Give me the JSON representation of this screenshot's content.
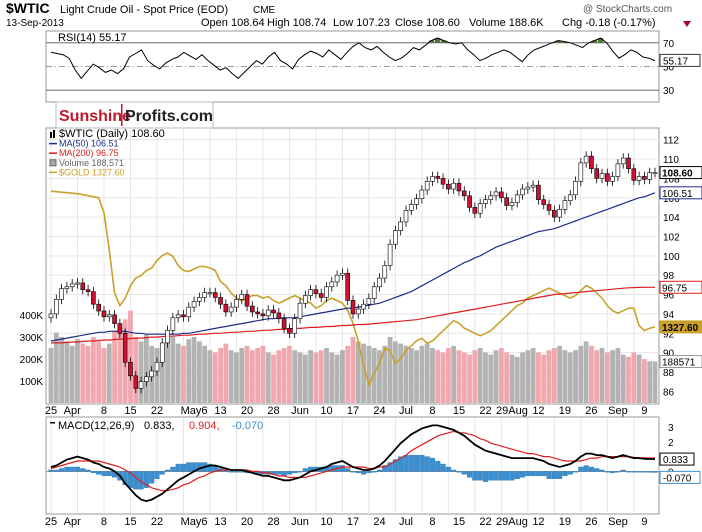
{
  "header": {
    "symbol": "$WTIC",
    "description": "Light Crude Oil - Spot Price (EOD)",
    "exchange": "CME",
    "date": "13-Sep-2013",
    "copyright": "@ StockCharts.com",
    "quote": {
      "open": "Open 108.64",
      "high": "High 108.74",
      "low": "Low 107.23",
      "close": "Close 108.60",
      "volume": "Volume 188.6K",
      "change": "Chg -0.18 (-0.17%)"
    }
  },
  "watermark": {
    "part1": "Sunshine",
    "part2": "Profits.com"
  },
  "colors": {
    "up": "#ffffff",
    "down": "#cc1133",
    "ma50": "#1e2c8c",
    "ma200": "#dd1f1f",
    "gold": "#c9a12a",
    "vol_up": "#b3b3b3",
    "vol_down": "#f0a8ae",
    "macd_line": "#000000",
    "signal_line": "#dd1f1f",
    "histogram": "#3a8fd0"
  },
  "chart_data": [
    {
      "type": "line",
      "name": "rsi-panel",
      "title": "RSI(14) 55.17",
      "ylim": [
        20,
        80
      ],
      "yticks": [
        "70",
        "50",
        "30"
      ],
      "last_label": "55.17",
      "levels": [
        70,
        30
      ],
      "midline": 50,
      "values": [
        62,
        61,
        60,
        57,
        47,
        40,
        46,
        52,
        49,
        45,
        47,
        44,
        48,
        58,
        61,
        64,
        55,
        51,
        48,
        53,
        56,
        58,
        62,
        59,
        56,
        60,
        55,
        51,
        47,
        49,
        44,
        40,
        45,
        50,
        55,
        52,
        58,
        62,
        55,
        52,
        48,
        56,
        60,
        63,
        61,
        58,
        64,
        60,
        56,
        62,
        67,
        70,
        66,
        64,
        67,
        62,
        58,
        55,
        57,
        61,
        66,
        64,
        68,
        72,
        74,
        72,
        70,
        69,
        70,
        64,
        60,
        55,
        57,
        60,
        62,
        64,
        62,
        58,
        54,
        60,
        64,
        66,
        68,
        70,
        72,
        71,
        70,
        68,
        66,
        70,
        72,
        74,
        70,
        63,
        57,
        60,
        64,
        62,
        58,
        57,
        55
      ]
    },
    {
      "type": "candlestick",
      "name": "price-panel",
      "legend": [
        "$WTIC (Daily) 108.60",
        "MA(50) 106.51",
        "MA(200) 96.75",
        "Volume 188,571",
        "$GOLD 1327.60"
      ],
      "ylim": [
        85,
        113
      ],
      "yticks": [
        "112",
        "110",
        "108",
        "106",
        "104",
        "102",
        "100",
        "98",
        "96",
        "94",
        "92",
        "90",
        "88",
        "86"
      ],
      "vol_ticks": [
        "400K",
        "300K",
        "200K",
        "100K"
      ],
      "vol_max": 500000,
      "right_labels": {
        "price": "108.60",
        "ma50": "106.51",
        "ma200": "96.75",
        "gold": "1327.60",
        "volume": "188571"
      },
      "x_labels": [
        "25",
        "Apr",
        "8",
        "15",
        "22",
        "May6",
        "13",
        "20",
        "28",
        "Jun",
        "10",
        "17",
        "24",
        "Jul",
        "8",
        "15",
        "22",
        "29Aug",
        "12",
        "19",
        "26",
        "Sep",
        "9"
      ],
      "x_label_index": [
        0,
        4,
        10,
        15,
        20,
        27,
        32,
        37,
        42,
        47,
        52,
        57,
        62,
        67,
        72,
        77,
        82,
        87,
        92,
        97,
        102,
        107,
        112
      ],
      "close": [
        94.0,
        95.5,
        96.6,
        96.8,
        97.1,
        97.2,
        96.5,
        96.3,
        95.0,
        94.3,
        93.7,
        93.9,
        93.0,
        92.0,
        89.0,
        87.6,
        86.3,
        87.0,
        87.5,
        88.1,
        89.0,
        91.0,
        92.3,
        93.6,
        93.9,
        93.7,
        94.7,
        95.3,
        95.7,
        96.2,
        96.2,
        95.7,
        95.0,
        94.2,
        94.7,
        95.5,
        96.0,
        94.8,
        94.2,
        94.0,
        93.8,
        94.4,
        94.1,
        93.5,
        92.5,
        92.0,
        93.5,
        95.1,
        95.9,
        96.5,
        96.1,
        95.7,
        96.8,
        97.3,
        98.0,
        98.2,
        95.4,
        94.0,
        94.5,
        95.0,
        95.6,
        96.8,
        97.7,
        99.0,
        101.2,
        102.6,
        103.5,
        104.7,
        105.3,
        105.9,
        106.8,
        107.7,
        108.2,
        108.0,
        107.4,
        106.9,
        107.5,
        106.7,
        106.2,
        105.0,
        104.4,
        105.4,
        105.8,
        106.2,
        106.6,
        106.0,
        105.2,
        105.5,
        106.3,
        106.9,
        107.1,
        107.3,
        105.8,
        105.3,
        104.7,
        104.0,
        104.8,
        105.7,
        106.3,
        107.7,
        109.6,
        110.3,
        109.0,
        108.0,
        108.5,
        107.7,
        108.2,
        109.5,
        110.1,
        109.0,
        107.8,
        108.2,
        107.9,
        108.6,
        108.6
      ],
      "volume": [
        250000,
        320000,
        300000,
        280000,
        260000,
        290000,
        270000,
        260000,
        300000,
        280000,
        250000,
        270000,
        330000,
        350000,
        380000,
        420000,
        300000,
        280000,
        310000,
        260000,
        250000,
        260000,
        280000,
        300000,
        270000,
        260000,
        290000,
        300000,
        280000,
        260000,
        240000,
        230000,
        250000,
        270000,
        240000,
        230000,
        250000,
        260000,
        240000,
        250000,
        260000,
        230000,
        220000,
        240000,
        250000,
        260000,
        240000,
        230000,
        220000,
        240000,
        230000,
        240000,
        250000,
        230000,
        220000,
        240000,
        260000,
        300000,
        280000,
        270000,
        260000,
        250000,
        240000,
        260000,
        300000,
        280000,
        270000,
        260000,
        250000,
        240000,
        260000,
        270000,
        250000,
        240000,
        230000,
        250000,
        260000,
        240000,
        230000,
        220000,
        240000,
        250000,
        230000,
        220000,
        240000,
        250000,
        230000,
        220000,
        210000,
        230000,
        240000,
        250000,
        230000,
        220000,
        240000,
        250000,
        260000,
        240000,
        230000,
        240000,
        260000,
        280000,
        260000,
        240000,
        250000,
        230000,
        240000,
        250000,
        220000,
        210000,
        230000,
        220000,
        200000,
        190000,
        188571
      ],
      "ma50": [
        91.2,
        91.3,
        91.4,
        91.5,
        91.6,
        91.7,
        91.8,
        91.9,
        92.0,
        92.1,
        92.1,
        92.2,
        92.2,
        92.2,
        92.2,
        92.1,
        92.0,
        92.0,
        91.9,
        91.9,
        91.9,
        91.9,
        91.9,
        91.9,
        91.9,
        92.0,
        92.0,
        92.1,
        92.2,
        92.3,
        92.4,
        92.5,
        92.6,
        92.7,
        92.8,
        92.9,
        93.0,
        93.1,
        93.2,
        93.3,
        93.4,
        93.5,
        93.5,
        93.6,
        93.6,
        93.6,
        93.6,
        93.7,
        93.8,
        93.9,
        94.0,
        94.1,
        94.2,
        94.3,
        94.4,
        94.5,
        94.6,
        94.6,
        94.7,
        94.8,
        94.9,
        95.0,
        95.1,
        95.3,
        95.5,
        95.7,
        95.9,
        96.1,
        96.3,
        96.6,
        96.9,
        97.2,
        97.5,
        97.8,
        98.1,
        98.4,
        98.7,
        99.0,
        99.3,
        99.5,
        99.8,
        100.0,
        100.3,
        100.6,
        100.9,
        101.1,
        101.3,
        101.5,
        101.7,
        101.9,
        102.1,
        102.3,
        102.5,
        102.6,
        102.7,
        102.8,
        103.0,
        103.2,
        103.4,
        103.6,
        103.8,
        104.0,
        104.2,
        104.4,
        104.6,
        104.8,
        105.0,
        105.2,
        105.4,
        105.6,
        105.8,
        106.0,
        106.1,
        106.3,
        106.51
      ],
      "ma200": [
        91.0,
        91.0,
        91.0,
        91.05,
        91.1,
        91.1,
        91.15,
        91.2,
        91.2,
        91.25,
        91.3,
        91.3,
        91.35,
        91.4,
        91.4,
        91.45,
        91.5,
        91.5,
        91.55,
        91.6,
        91.6,
        91.65,
        91.7,
        91.7,
        91.75,
        91.8,
        91.8,
        91.85,
        91.9,
        91.9,
        91.95,
        92.0,
        92.0,
        92.05,
        92.1,
        92.1,
        92.15,
        92.2,
        92.2,
        92.25,
        92.3,
        92.3,
        92.35,
        92.4,
        92.4,
        92.45,
        92.5,
        92.5,
        92.55,
        92.6,
        92.6,
        92.65,
        92.7,
        92.7,
        92.75,
        92.8,
        92.8,
        92.85,
        92.9,
        92.9,
        92.95,
        93.0,
        93.05,
        93.1,
        93.15,
        93.2,
        93.25,
        93.3,
        93.35,
        93.4,
        93.5,
        93.6,
        93.7,
        93.8,
        93.9,
        94.0,
        94.1,
        94.2,
        94.3,
        94.4,
        94.5,
        94.6,
        94.7,
        94.8,
        94.9,
        95.0,
        95.1,
        95.2,
        95.3,
        95.4,
        95.5,
        95.6,
        95.7,
        95.8,
        95.9,
        96.0,
        96.05,
        96.1,
        96.15,
        96.2,
        96.25,
        96.3,
        96.35,
        96.4,
        96.45,
        96.5,
        96.55,
        96.6,
        96.65,
        96.7,
        96.72,
        96.74,
        96.75,
        96.75,
        96.75
      ],
      "gold": [
        1598,
        1597,
        1596,
        1595,
        1594,
        1593,
        1591,
        1589,
        1587,
        1585,
        1555,
        1480,
        1395,
        1370,
        1385,
        1410,
        1425,
        1430,
        1440,
        1445,
        1460,
        1470,
        1475,
        1468,
        1450,
        1440,
        1438,
        1443,
        1448,
        1448,
        1445,
        1440,
        1418,
        1410,
        1395,
        1385,
        1380,
        1385,
        1390,
        1390,
        1385,
        1388,
        1380,
        1375,
        1380,
        1385,
        1390,
        1385,
        1380,
        1375,
        1365,
        1370,
        1380,
        1385,
        1380,
        1375,
        1360,
        1335,
        1300,
        1250,
        1212,
        1235,
        1255,
        1285,
        1280,
        1255,
        1265,
        1280,
        1290,
        1300,
        1305,
        1295,
        1300,
        1310,
        1320,
        1330,
        1340,
        1335,
        1325,
        1320,
        1315,
        1310,
        1315,
        1320,
        1330,
        1340,
        1350,
        1360,
        1370,
        1375,
        1385,
        1390,
        1395,
        1400,
        1405,
        1400,
        1395,
        1390,
        1385,
        1390,
        1400,
        1410,
        1405,
        1395,
        1385,
        1370,
        1360,
        1355,
        1360,
        1365,
        1365,
        1330,
        1320,
        1325,
        1327.6
      ],
      "gold_ylim": [
        1180,
        1720
      ]
    },
    {
      "type": "line",
      "name": "macd-panel",
      "title": "MACD(12,26,9) 0.833, 0.904, -0.070",
      "title_parts": {
        "label": "MACD(12,26,9)",
        "macd": "0.833",
        "signal": "0.904",
        "hist": "-0.070"
      },
      "ylim": [
        -2.8,
        3.6
      ],
      "yticks": [
        "3",
        "2",
        "1",
        "0"
      ],
      "right_labels": {
        "macd": "0.833",
        "hist": "-0.070"
      },
      "x_labels": [
        "25",
        "Apr",
        "8",
        "15",
        "22",
        "May6",
        "13",
        "20",
        "28",
        "Jun",
        "10",
        "17",
        "24",
        "Jul",
        "8",
        "15",
        "22",
        "29Aug",
        "12",
        "19",
        "26",
        "Sep",
        "9"
      ],
      "x_label_index": [
        0,
        4,
        10,
        15,
        20,
        27,
        32,
        37,
        42,
        47,
        52,
        57,
        62,
        67,
        72,
        77,
        82,
        87,
        92,
        97,
        102,
        107,
        112
      ],
      "macd": [
        0.3,
        0.4,
        0.6,
        0.8,
        0.9,
        1.0,
        0.9,
        0.8,
        0.6,
        0.5,
        0.3,
        0.2,
        0.0,
        -0.3,
        -0.8,
        -1.2,
        -1.6,
        -1.9,
        -2.0,
        -1.9,
        -1.7,
        -1.5,
        -1.2,
        -0.9,
        -0.6,
        -0.4,
        -0.2,
        0.0,
        0.2,
        0.3,
        0.4,
        0.4,
        0.3,
        0.2,
        0.1,
        0.1,
        0.1,
        0.0,
        -0.1,
        -0.2,
        -0.3,
        -0.3,
        -0.4,
        -0.5,
        -0.6,
        -0.6,
        -0.5,
        -0.4,
        -0.2,
        0.0,
        0.1,
        0.2,
        0.3,
        0.5,
        0.6,
        0.7,
        0.5,
        0.3,
        0.2,
        0.1,
        0.1,
        0.2,
        0.4,
        0.7,
        1.1,
        1.5,
        1.9,
        2.2,
        2.5,
        2.7,
        2.9,
        3.0,
        3.1,
        3.1,
        3.0,
        2.9,
        2.8,
        2.6,
        2.4,
        2.1,
        1.8,
        1.6,
        1.4,
        1.3,
        1.2,
        1.1,
        1.0,
        0.9,
        0.9,
        0.9,
        0.9,
        0.9,
        0.8,
        0.7,
        0.5,
        0.4,
        0.3,
        0.4,
        0.5,
        0.7,
        1.0,
        1.2,
        1.2,
        1.1,
        1.1,
        1.0,
        0.9,
        1.0,
        1.1,
        1.0,
        0.9,
        0.9,
        0.85,
        0.84,
        0.833
      ],
      "signal": [
        0.2,
        0.3,
        0.4,
        0.5,
        0.6,
        0.7,
        0.7,
        0.7,
        0.7,
        0.7,
        0.6,
        0.5,
        0.4,
        0.3,
        0.1,
        -0.1,
        -0.4,
        -0.7,
        -0.9,
        -1.1,
        -1.2,
        -1.3,
        -1.3,
        -1.2,
        -1.1,
        -0.9,
        -0.8,
        -0.6,
        -0.4,
        -0.3,
        -0.1,
        0.0,
        0.1,
        0.1,
        0.1,
        0.1,
        0.1,
        0.1,
        0.0,
        0.0,
        -0.1,
        -0.1,
        -0.2,
        -0.3,
        -0.3,
        -0.4,
        -0.4,
        -0.4,
        -0.4,
        -0.3,
        -0.2,
        -0.1,
        0.0,
        0.1,
        0.2,
        0.3,
        0.3,
        0.3,
        0.3,
        0.3,
        0.2,
        0.2,
        0.3,
        0.3,
        0.5,
        0.7,
        0.9,
        1.1,
        1.4,
        1.6,
        1.8,
        2.0,
        2.2,
        2.4,
        2.5,
        2.6,
        2.7,
        2.6,
        2.6,
        2.5,
        2.4,
        2.2,
        2.1,
        1.9,
        1.8,
        1.7,
        1.6,
        1.5,
        1.4,
        1.3,
        1.2,
        1.2,
        1.1,
        1.0,
        1.0,
        0.9,
        0.8,
        0.7,
        0.7,
        0.7,
        0.7,
        0.8,
        0.9,
        0.9,
        1.0,
        1.0,
        1.0,
        1.0,
        1.0,
        1.0,
        0.95,
        0.92,
        0.91,
        0.905,
        0.904
      ]
    }
  ]
}
